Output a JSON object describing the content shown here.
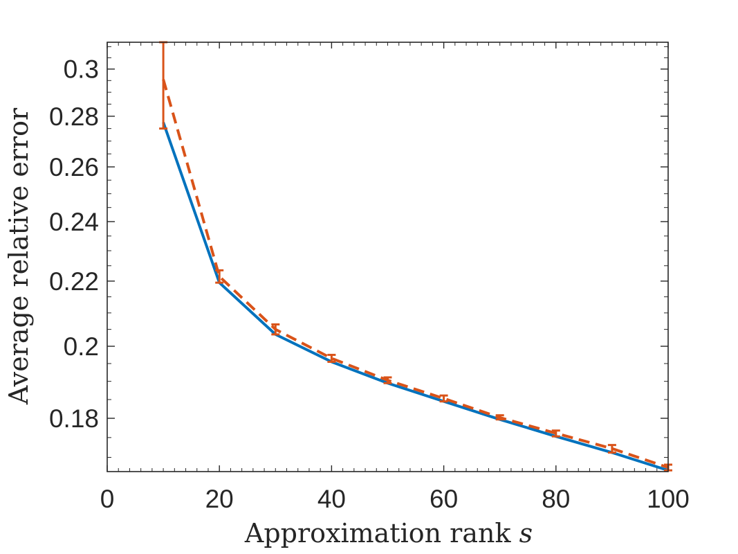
{
  "chart_data": {
    "type": "line",
    "title": "",
    "xlabel": "Approximation rank",
    "xlabel_symbol": "s",
    "ylabel": "Average relative error",
    "x_scale": "linear",
    "y_scale": "log",
    "xlim": [
      0,
      100
    ],
    "ylim": [
      0.1665,
      0.312
    ],
    "x_ticks": [
      0,
      20,
      40,
      60,
      80,
      100
    ],
    "x_tick_labels": [
      "0",
      "20",
      "40",
      "60",
      "80",
      "100"
    ],
    "y_ticks": [
      0.18,
      0.2,
      0.22,
      0.24,
      0.26,
      0.28,
      0.3
    ],
    "y_tick_labels": [
      "0.18",
      "0.2",
      "0.22",
      "0.24",
      "0.26",
      "0.28",
      "0.3"
    ],
    "grid": false,
    "box": true,
    "series": [
      {
        "color": "#0072BD",
        "line_style": "solid",
        "x": [
          10,
          20,
          30,
          40,
          50,
          60,
          70,
          80,
          90,
          100
        ],
        "y": [
          0.2775,
          0.2195,
          0.2035,
          0.1955,
          0.1895,
          0.1845,
          0.1797,
          0.1753,
          0.1712,
          0.1668
        ]
      },
      {
        "color": "#D95319",
        "line_style": "dashed",
        "x": [
          10,
          20,
          30,
          40,
          50,
          60,
          70,
          80,
          90,
          100
        ],
        "y": [
          0.2955,
          0.2215,
          0.205,
          0.1965,
          0.1903,
          0.1853,
          0.1802,
          0.1761,
          0.1722,
          0.1675
        ],
        "error_low": [
          0.275,
          0.2195,
          0.2035,
          0.1955,
          0.1895,
          0.1845,
          0.1797,
          0.1753,
          0.1712,
          0.1668
        ],
        "error_high": [
          0.312,
          0.2235,
          0.2065,
          0.1975,
          0.1911,
          0.1861,
          0.1808,
          0.1768,
          0.1731,
          0.1682
        ]
      }
    ]
  }
}
